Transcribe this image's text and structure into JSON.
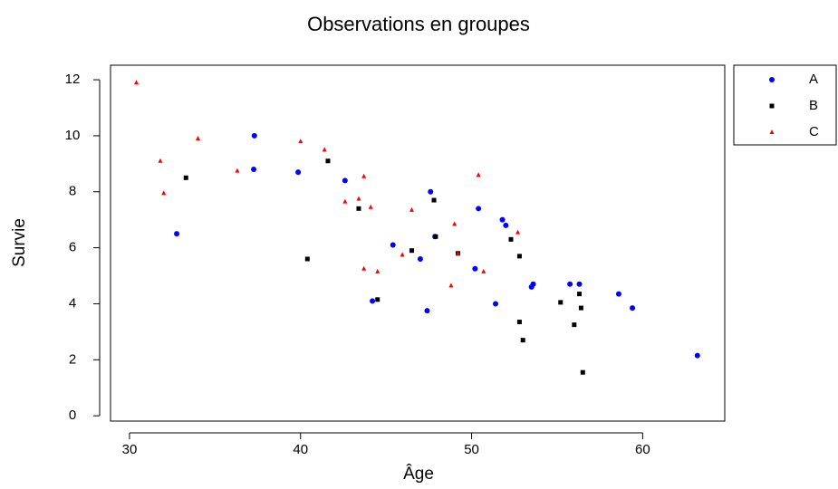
{
  "chart_data": {
    "type": "scatter",
    "title": "Observations en groupes",
    "x_label": "Âge",
    "y_label": "Survie",
    "xlim": [
      28.89,
      64.8
    ],
    "ylim": [
      -0.19,
      12.52
    ],
    "xticks": [
      30,
      40,
      50,
      60
    ],
    "yticks": [
      0,
      2,
      4,
      6,
      8,
      10,
      12
    ],
    "grid": false,
    "legend": "outside-top-right",
    "series": [
      {
        "name": "A",
        "color": "#0000ff",
        "marker": "circle",
        "x": [
          32.76,
          37.3,
          37.26,
          39.86,
          42.6,
          45.4,
          47.0,
          47.6,
          47.4,
          47.86,
          44.2,
          50.4,
          50.2,
          51.8,
          52.0,
          51.4,
          53.5,
          53.6,
          55.75,
          56.3,
          58.6,
          59.4,
          63.2
        ],
        "values": [
          6.5,
          10.0,
          8.8,
          8.7,
          8.4,
          6.1,
          5.6,
          8.0,
          3.75,
          6.4,
          4.1,
          7.4,
          5.25,
          7.0,
          6.8,
          4.0,
          4.6,
          4.7,
          4.7,
          4.7,
          4.35,
          3.85,
          2.15
        ]
      },
      {
        "name": "B",
        "color": "#000000",
        "marker": "square",
        "x": [
          33.3,
          40.4,
          41.6,
          43.4,
          44.5,
          46.5,
          47.8,
          47.9,
          49.2,
          52.3,
          52.8,
          52.8,
          53.0,
          55.2,
          56.0,
          56.3,
          56.4,
          56.5
        ],
        "values": [
          8.5,
          5.6,
          9.1,
          7.4,
          4.15,
          5.9,
          7.7,
          6.4,
          5.8,
          6.3,
          5.7,
          3.35,
          2.7,
          4.05,
          3.25,
          4.35,
          3.85,
          1.55
        ]
      },
      {
        "name": "C",
        "color": "#ff0000",
        "marker": "triangle",
        "x": [
          30.4,
          31.8,
          32.0,
          34.0,
          36.3,
          40.0,
          41.4,
          42.6,
          43.4,
          43.7,
          43.7,
          44.1,
          44.5,
          45.95,
          46.5,
          48.8,
          49.0,
          49.2,
          50.4,
          50.7,
          52.7
        ],
        "values": [
          11.9,
          9.1,
          7.95,
          9.9,
          8.75,
          9.8,
          9.5,
          7.65,
          7.75,
          8.55,
          5.25,
          7.45,
          5.15,
          5.75,
          7.35,
          4.65,
          6.85,
          5.8,
          8.6,
          5.15,
          6.55
        ]
      }
    ]
  }
}
